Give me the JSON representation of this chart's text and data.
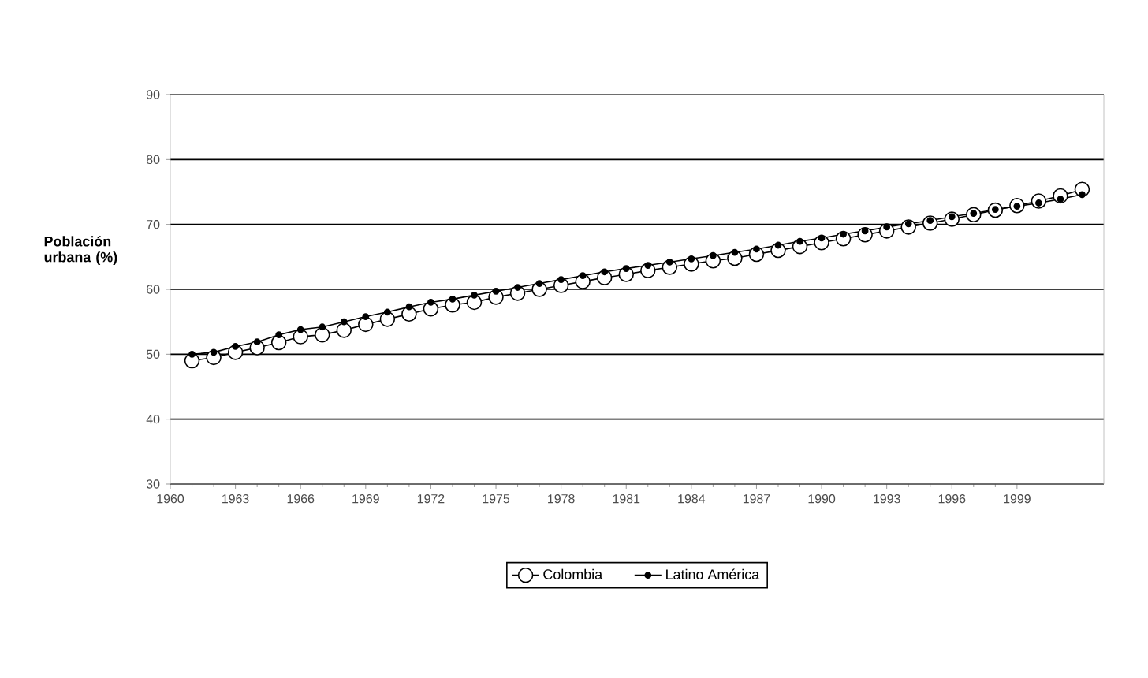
{
  "chart_data": {
    "type": "line",
    "ylabel": "Población urbana (%)",
    "x": [
      1961,
      1962,
      1963,
      1964,
      1965,
      1966,
      1967,
      1968,
      1969,
      1970,
      1971,
      1972,
      1973,
      1974,
      1975,
      1976,
      1977,
      1978,
      1979,
      1980,
      1981,
      1982,
      1983,
      1984,
      1985,
      1986,
      1987,
      1988,
      1989,
      1990,
      1991,
      1992,
      1993,
      1994,
      1995,
      1996,
      1997,
      1998,
      1999,
      2000,
      2001,
      2002
    ],
    "series": [
      {
        "name": "Colombia",
        "color": "#ffffff",
        "marker": "circle",
        "values": [
          49.0,
          49.5,
          50.3,
          51.0,
          51.8,
          52.7,
          53.0,
          53.7,
          54.6,
          55.4,
          56.2,
          57.0,
          57.6,
          58.0,
          58.8,
          59.4,
          60.0,
          60.6,
          61.2,
          61.8,
          62.3,
          62.9,
          63.4,
          63.9,
          64.4,
          64.8,
          65.4,
          66.0,
          66.6,
          67.2,
          67.8,
          68.4,
          69.0,
          69.6,
          70.2,
          70.8,
          71.5,
          72.2,
          72.9,
          73.6,
          74.4,
          75.4
        ]
      },
      {
        "name": "Latino América",
        "color": "#000000",
        "marker": "circle",
        "values": [
          50.0,
          50.3,
          51.2,
          51.9,
          53.0,
          53.8,
          54.2,
          55.0,
          55.8,
          56.5,
          57.3,
          58.0,
          58.5,
          59.1,
          59.7,
          60.3,
          60.9,
          61.5,
          62.1,
          62.7,
          63.2,
          63.7,
          64.2,
          64.7,
          65.2,
          65.7,
          66.2,
          66.8,
          67.4,
          67.9,
          68.5,
          69.0,
          69.6,
          70.1,
          70.6,
          71.2,
          71.7,
          72.3,
          72.8,
          73.3,
          73.9,
          74.6
        ]
      }
    ],
    "xlim": [
      1960,
      2003
    ],
    "xticks": [
      1960,
      1963,
      1966,
      1969,
      1972,
      1975,
      1978,
      1981,
      1984,
      1987,
      1990,
      1993,
      1996,
      1999
    ],
    "ylim": [
      30,
      90
    ],
    "yticks": [
      30,
      40,
      50,
      60,
      70,
      80,
      90
    ],
    "grid": "y",
    "legend": "bottom",
    "line_style": "solid"
  }
}
